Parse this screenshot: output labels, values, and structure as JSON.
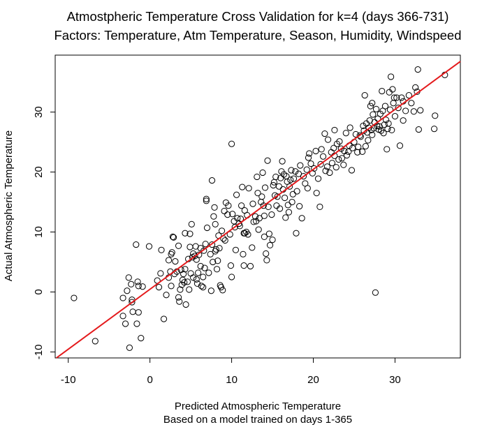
{
  "chart_data": {
    "type": "scatter",
    "title": "Atmostpheric Temperature Cross Validation for k=4 (days 366-731)",
    "subtitle": "Factors: Temperature, Atm Temperature, Season, Humidity, Windspeed",
    "xlabel": "Predicted Atmospheric Temperature",
    "xlabel2": "Based on a model trained on days 1-365",
    "ylabel": "Actual Atmospheric Temperature",
    "xlim": [
      -11.6,
      38.0
    ],
    "ylim": [
      -11.0,
      39.5
    ],
    "x_ticks": [
      -10,
      0,
      10,
      20,
      30
    ],
    "y_ticks": [
      -10,
      0,
      10,
      20,
      30
    ],
    "x_tick_labels": [
      "-10",
      "0",
      "10",
      "20",
      "30"
    ],
    "y_tick_labels": [
      "-10",
      "0",
      "10",
      "20",
      "30"
    ],
    "grid": false,
    "point_color": "#000000",
    "line_color": "#e41a1c",
    "fit_line": {
      "intercept": 0.45,
      "slope": 1.0
    },
    "points": [
      [
        -9.3,
        -1.0
      ],
      [
        -6.7,
        -8.2
      ],
      [
        -3.3,
        -4.0
      ],
      [
        -3.3,
        -1.0
      ],
      [
        -3.0,
        -5.3
      ],
      [
        -2.8,
        0.2
      ],
      [
        -2.6,
        2.4
      ],
      [
        -2.5,
        -9.3
      ],
      [
        -2.3,
        1.3
      ],
      [
        -2.2,
        -1.3
      ],
      [
        -2.2,
        -1.7
      ],
      [
        -2.1,
        -3.3
      ],
      [
        -1.6,
        -5.3
      ],
      [
        -1.4,
        -3.4
      ],
      [
        -1.5,
        1.7
      ],
      [
        -1.4,
        1.0
      ],
      [
        -1.1,
        -7.7
      ],
      [
        -0.9,
        0.9
      ],
      [
        -1.7,
        7.9
      ],
      [
        -0.1,
        7.6
      ],
      [
        0.9,
        1.9
      ],
      [
        1.1,
        0.8
      ],
      [
        1.4,
        7.0
      ],
      [
        1.7,
        -4.5
      ],
      [
        1.3,
        3.1
      ],
      [
        2.0,
        -0.5
      ],
      [
        2.3,
        5.3
      ],
      [
        2.3,
        2.4
      ],
      [
        2.5,
        3.4
      ],
      [
        2.6,
        1.0
      ],
      [
        2.6,
        6.3
      ],
      [
        2.7,
        6.6
      ],
      [
        2.8,
        9.2
      ],
      [
        2.9,
        9.1
      ],
      [
        3.0,
        3.0
      ],
      [
        3.3,
        3.4
      ],
      [
        3.5,
        -0.9
      ],
      [
        3.5,
        7.7
      ],
      [
        3.6,
        -1.6
      ],
      [
        3.7,
        0.4
      ],
      [
        3.8,
        3.7
      ],
      [
        3.9,
        1.2
      ],
      [
        4.0,
        2.0
      ],
      [
        4.1,
        3.0
      ],
      [
        4.2,
        1.6
      ],
      [
        4.3,
        3.8
      ],
      [
        4.3,
        9.8
      ],
      [
        4.4,
        -2.1
      ],
      [
        4.6,
        1.7
      ],
      [
        4.7,
        5.5
      ],
      [
        4.8,
        0.4
      ],
      [
        4.9,
        7.5
      ],
      [
        4.9,
        9.7
      ],
      [
        5.0,
        3.1
      ],
      [
        5.1,
        11.3
      ],
      [
        5.2,
        5.8
      ],
      [
        5.3,
        6.4
      ],
      [
        5.3,
        2.4
      ],
      [
        5.5,
        6.0
      ],
      [
        5.6,
        7.6
      ],
      [
        5.7,
        2.1
      ],
      [
        5.8,
        1.4
      ],
      [
        5.9,
        3.2
      ],
      [
        6.0,
        6.2
      ],
      [
        6.2,
        7.3
      ],
      [
        6.3,
        1.0
      ],
      [
        6.5,
        0.8
      ],
      [
        6.5,
        2.5
      ],
      [
        6.6,
        6.9
      ],
      [
        6.7,
        4.0
      ],
      [
        6.8,
        8.0
      ],
      [
        6.9,
        15.2
      ],
      [
        6.9,
        15.5
      ],
      [
        7.0,
        10.7
      ],
      [
        7.2,
        3.2
      ],
      [
        7.4,
        6.3
      ],
      [
        7.5,
        0.2
      ],
      [
        7.6,
        7.9
      ],
      [
        7.6,
        18.6
      ],
      [
        7.7,
        5.0
      ],
      [
        7.8,
        12.6
      ],
      [
        7.9,
        14.1
      ],
      [
        8.0,
        11.3
      ],
      [
        8.1,
        7.1
      ],
      [
        8.2,
        3.8
      ],
      [
        8.3,
        5.2
      ],
      [
        8.4,
        9.4
      ],
      [
        8.5,
        7.3
      ],
      [
        8.6,
        1.1
      ],
      [
        8.7,
        0.8
      ],
      [
        8.8,
        10.2
      ],
      [
        8.9,
        0.3
      ],
      [
        9.0,
        8.9
      ],
      [
        9.1,
        13.5
      ],
      [
        9.2,
        8.6
      ],
      [
        9.3,
        14.9
      ],
      [
        9.5,
        12.9
      ],
      [
        9.6,
        14.4
      ],
      [
        9.8,
        9.6
      ],
      [
        9.9,
        4.4
      ],
      [
        10.0,
        2.5
      ],
      [
        10.0,
        24.7
      ],
      [
        10.1,
        13.0
      ],
      [
        10.3,
        11.8
      ],
      [
        10.4,
        10.8
      ],
      [
        10.5,
        7.0
      ],
      [
        10.6,
        16.2
      ],
      [
        10.7,
        12.3
      ],
      [
        10.9,
        11.4
      ],
      [
        11.0,
        11.0
      ],
      [
        11.1,
        12.2
      ],
      [
        11.2,
        14.4
      ],
      [
        11.3,
        17.5
      ],
      [
        11.4,
        6.3
      ],
      [
        11.5,
        4.4
      ],
      [
        11.6,
        13.6
      ],
      [
        11.6,
        9.8
      ],
      [
        11.8,
        10.0
      ],
      [
        11.9,
        12.8
      ],
      [
        12.0,
        9.6
      ],
      [
        12.1,
        17.3
      ],
      [
        12.3,
        4.3
      ],
      [
        12.5,
        7.4
      ],
      [
        12.6,
        14.7
      ],
      [
        12.7,
        11.7
      ],
      [
        12.9,
        12.6
      ],
      [
        13.0,
        11.8
      ],
      [
        13.1,
        19.2
      ],
      [
        13.2,
        16.5
      ],
      [
        13.3,
        10.4
      ],
      [
        13.4,
        12.3
      ],
      [
        13.6,
        15.0
      ],
      [
        13.7,
        15.9
      ],
      [
        13.8,
        19.9
      ],
      [
        13.9,
        14.4
      ],
      [
        14.0,
        12.7
      ],
      [
        14.1,
        17.4
      ],
      [
        14.2,
        6.4
      ],
      [
        14.3,
        5.3
      ],
      [
        14.4,
        21.9
      ],
      [
        14.5,
        14.2
      ],
      [
        14.6,
        9.7
      ],
      [
        14.7,
        7.8
      ],
      [
        14.9,
        12.9
      ],
      [
        15.0,
        8.7
      ],
      [
        15.1,
        17.8
      ],
      [
        15.2,
        18.3
      ],
      [
        15.3,
        16.1
      ],
      [
        15.4,
        19.2
      ],
      [
        15.5,
        14.4
      ],
      [
        15.6,
        15.9
      ],
      [
        15.8,
        17.6
      ],
      [
        15.9,
        13.9
      ],
      [
        16.0,
        19.0
      ],
      [
        16.1,
        20.1
      ],
      [
        16.2,
        21.8
      ],
      [
        16.3,
        17.1
      ],
      [
        16.4,
        19.6
      ],
      [
        16.5,
        15.7
      ],
      [
        16.6,
        12.4
      ],
      [
        16.7,
        19.3
      ],
      [
        16.8,
        18.4
      ],
      [
        16.9,
        14.5
      ],
      [
        17.0,
        13.3
      ],
      [
        17.1,
        17.6
      ],
      [
        17.2,
        18.7
      ],
      [
        17.3,
        20.3
      ],
      [
        17.4,
        15.0
      ],
      [
        17.5,
        16.3
      ],
      [
        17.6,
        18.9
      ],
      [
        17.8,
        20.1
      ],
      [
        17.9,
        9.8
      ],
      [
        18.0,
        16.8
      ],
      [
        18.2,
        19.7
      ],
      [
        18.3,
        14.3
      ],
      [
        18.4,
        21.1
      ],
      [
        18.6,
        12.3
      ],
      [
        18.8,
        19.3
      ],
      [
        19.0,
        18.1
      ],
      [
        19.2,
        20.4
      ],
      [
        19.3,
        17.3
      ],
      [
        19.5,
        23.1
      ],
      [
        19.7,
        21.4
      ],
      [
        19.9,
        19.8
      ],
      [
        20.1,
        20.6
      ],
      [
        20.3,
        23.5
      ],
      [
        20.4,
        16.5
      ],
      [
        20.6,
        18.9
      ],
      [
        20.8,
        14.2
      ],
      [
        20.9,
        21.3
      ],
      [
        21.0,
        23.8
      ],
      [
        21.2,
        22.6
      ],
      [
        21.4,
        26.4
      ],
      [
        21.5,
        20.2
      ],
      [
        21.7,
        20.9
      ],
      [
        21.8,
        25.4
      ],
      [
        22.0,
        19.9
      ],
      [
        22.2,
        23.3
      ],
      [
        22.3,
        21.5
      ],
      [
        22.5,
        24.0
      ],
      [
        22.6,
        22.7
      ],
      [
        22.8,
        20.8
      ],
      [
        22.9,
        24.7
      ],
      [
        23.1,
        22.1
      ],
      [
        23.2,
        25.1
      ],
      [
        23.4,
        23.9
      ],
      [
        23.5,
        22.3
      ],
      [
        23.7,
        21.2
      ],
      [
        23.8,
        23.5
      ],
      [
        24.0,
        26.5
      ],
      [
        24.1,
        22.8
      ],
      [
        24.3,
        23.4
      ],
      [
        24.4,
        24.4
      ],
      [
        24.5,
        27.4
      ],
      [
        24.7,
        20.3
      ],
      [
        25.0,
        25.0
      ],
      [
        25.2,
        26.3
      ],
      [
        25.4,
        23.3
      ],
      [
        25.5,
        24.2
      ],
      [
        25.7,
        26.1
      ],
      [
        25.8,
        25.9
      ],
      [
        26.0,
        23.4
      ],
      [
        26.1,
        27.7
      ],
      [
        26.2,
        26.9
      ],
      [
        26.3,
        32.8
      ],
      [
        26.4,
        24.3
      ],
      [
        26.5,
        28.1
      ],
      [
        26.6,
        26.6
      ],
      [
        26.7,
        25.3
      ],
      [
        26.8,
        27.4
      ],
      [
        26.9,
        28.6
      ],
      [
        27.0,
        31.0
      ],
      [
        27.1,
        27.0
      ],
      [
        27.2,
        26.2
      ],
      [
        27.3,
        29.6
      ],
      [
        27.4,
        27.3
      ],
      [
        27.5,
        28.3
      ],
      [
        27.6,
        -0.1
      ],
      [
        27.7,
        30.5
      ],
      [
        27.8,
        27.7
      ],
      [
        27.9,
        28.9
      ],
      [
        28.0,
        27.1
      ],
      [
        28.1,
        27.6
      ],
      [
        28.2,
        29.7
      ],
      [
        28.3,
        26.9
      ],
      [
        28.4,
        33.5
      ],
      [
        28.5,
        30.2
      ],
      [
        28.6,
        26.5
      ],
      [
        28.7,
        27.9
      ],
      [
        28.8,
        31.0
      ],
      [
        28.9,
        28.7
      ],
      [
        29.0,
        23.8
      ],
      [
        29.1,
        27.2
      ],
      [
        29.2,
        28.1
      ],
      [
        29.3,
        33.3
      ],
      [
        29.4,
        30.4
      ],
      [
        29.5,
        35.9
      ],
      [
        29.6,
        27.0
      ],
      [
        29.7,
        33.8
      ],
      [
        29.8,
        31.5
      ],
      [
        29.9,
        32.4
      ],
      [
        30.0,
        29.3
      ],
      [
        30.2,
        32.4
      ],
      [
        30.4,
        30.7
      ],
      [
        30.6,
        24.4
      ],
      [
        30.8,
        32.4
      ],
      [
        31.0,
        31.8
      ],
      [
        31.3,
        30.2
      ],
      [
        31.7,
        32.8
      ],
      [
        32.0,
        31.5
      ],
      [
        32.3,
        30.1
      ],
      [
        32.5,
        34.1
      ],
      [
        32.7,
        33.4
      ],
      [
        32.8,
        37.1
      ],
      [
        32.9,
        27.1
      ],
      [
        33.1,
        30.3
      ],
      [
        34.8,
        27.2
      ],
      [
        34.9,
        29.4
      ],
      [
        36.1,
        36.2
      ],
      [
        31.0,
        28.6
      ],
      [
        22.6,
        27.0
      ],
      [
        19.4,
        22.4
      ],
      [
        11.5,
        9.8
      ],
      [
        14.0,
        9.2
      ],
      [
        8.0,
        6.8
      ],
      [
        6.2,
        4.3
      ],
      [
        3.1,
        5.1
      ],
      [
        5.7,
        5.4
      ],
      [
        24.8,
        24.0
      ],
      [
        27.2,
        31.5
      ]
    ]
  }
}
